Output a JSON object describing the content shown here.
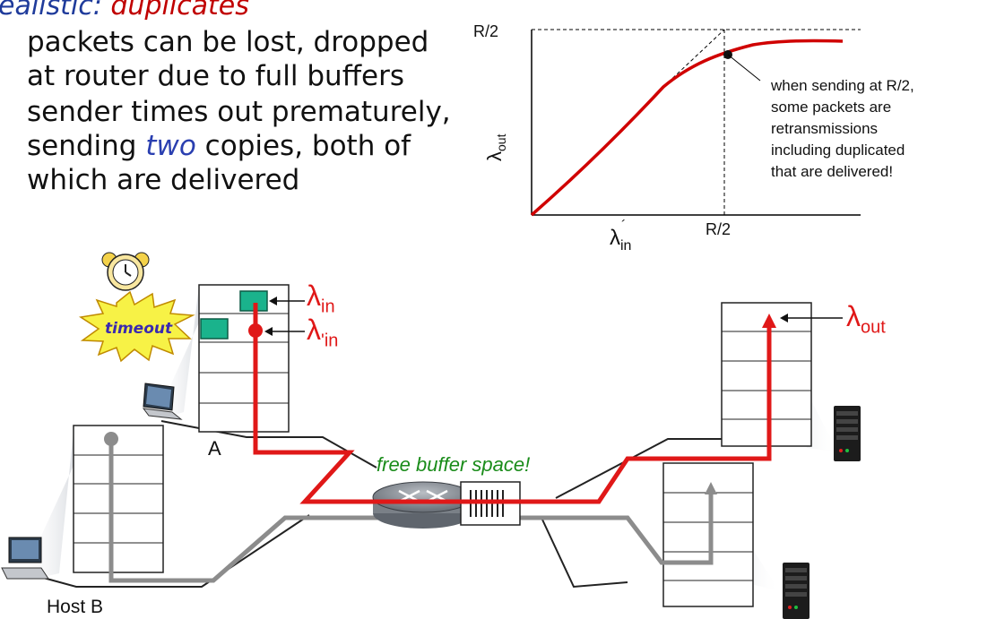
{
  "title": {
    "lead": "ealistic:",
    "main": "duplicates"
  },
  "bullets": [
    {
      "line1": "packets can be lost, dropped",
      "line2": "at router due  to full buffers"
    },
    {
      "line1": "sender times out prematurely,",
      "line2_pre": "sending ",
      "line2_em": "two",
      "line2_post": " copies, both of",
      "line3": "which are delivered"
    }
  ],
  "chart_data": {
    "type": "line",
    "title": "",
    "xlabel": "λ'in",
    "ylabel": "λout",
    "x_ticks": [
      "R/2"
    ],
    "y_ticks": [
      "R/2"
    ],
    "series": [
      {
        "color": "#d00000",
        "x": [
          0,
          0.1,
          0.2,
          0.3,
          0.4,
          0.45,
          0.5,
          0.55,
          0.6
        ],
        "y": [
          0,
          0.1,
          0.19,
          0.28,
          0.36,
          0.4,
          0.44,
          0.465,
          0.47
        ]
      }
    ],
    "reference_lines": [
      "dashed line from origin toward (R/2, R/2)",
      "dashed horizontal at R/2",
      "dashed vertical at R/2"
    ],
    "annotation": "when sending at R/2, some packets are retransmissions including duplicated that are delivered!"
  },
  "annotation_lines": [
    "when sending at R/2,",
    "some packets are",
    "retransmissions",
    "including duplicated",
    "that are delivered!"
  ],
  "labels": {
    "lambda": "λ",
    "in": "in",
    "prime_in": "'in",
    "out": "out",
    "A": "A",
    "host_b": "Host B",
    "buffer": "free buffer space!",
    "timeout": "timeout",
    "r2": "R/2"
  },
  "colors": {
    "red": "#e01818",
    "queue_green": "#1ab38c",
    "title_blue": "#1f3b9b",
    "green_text": "#1a8c1a"
  }
}
